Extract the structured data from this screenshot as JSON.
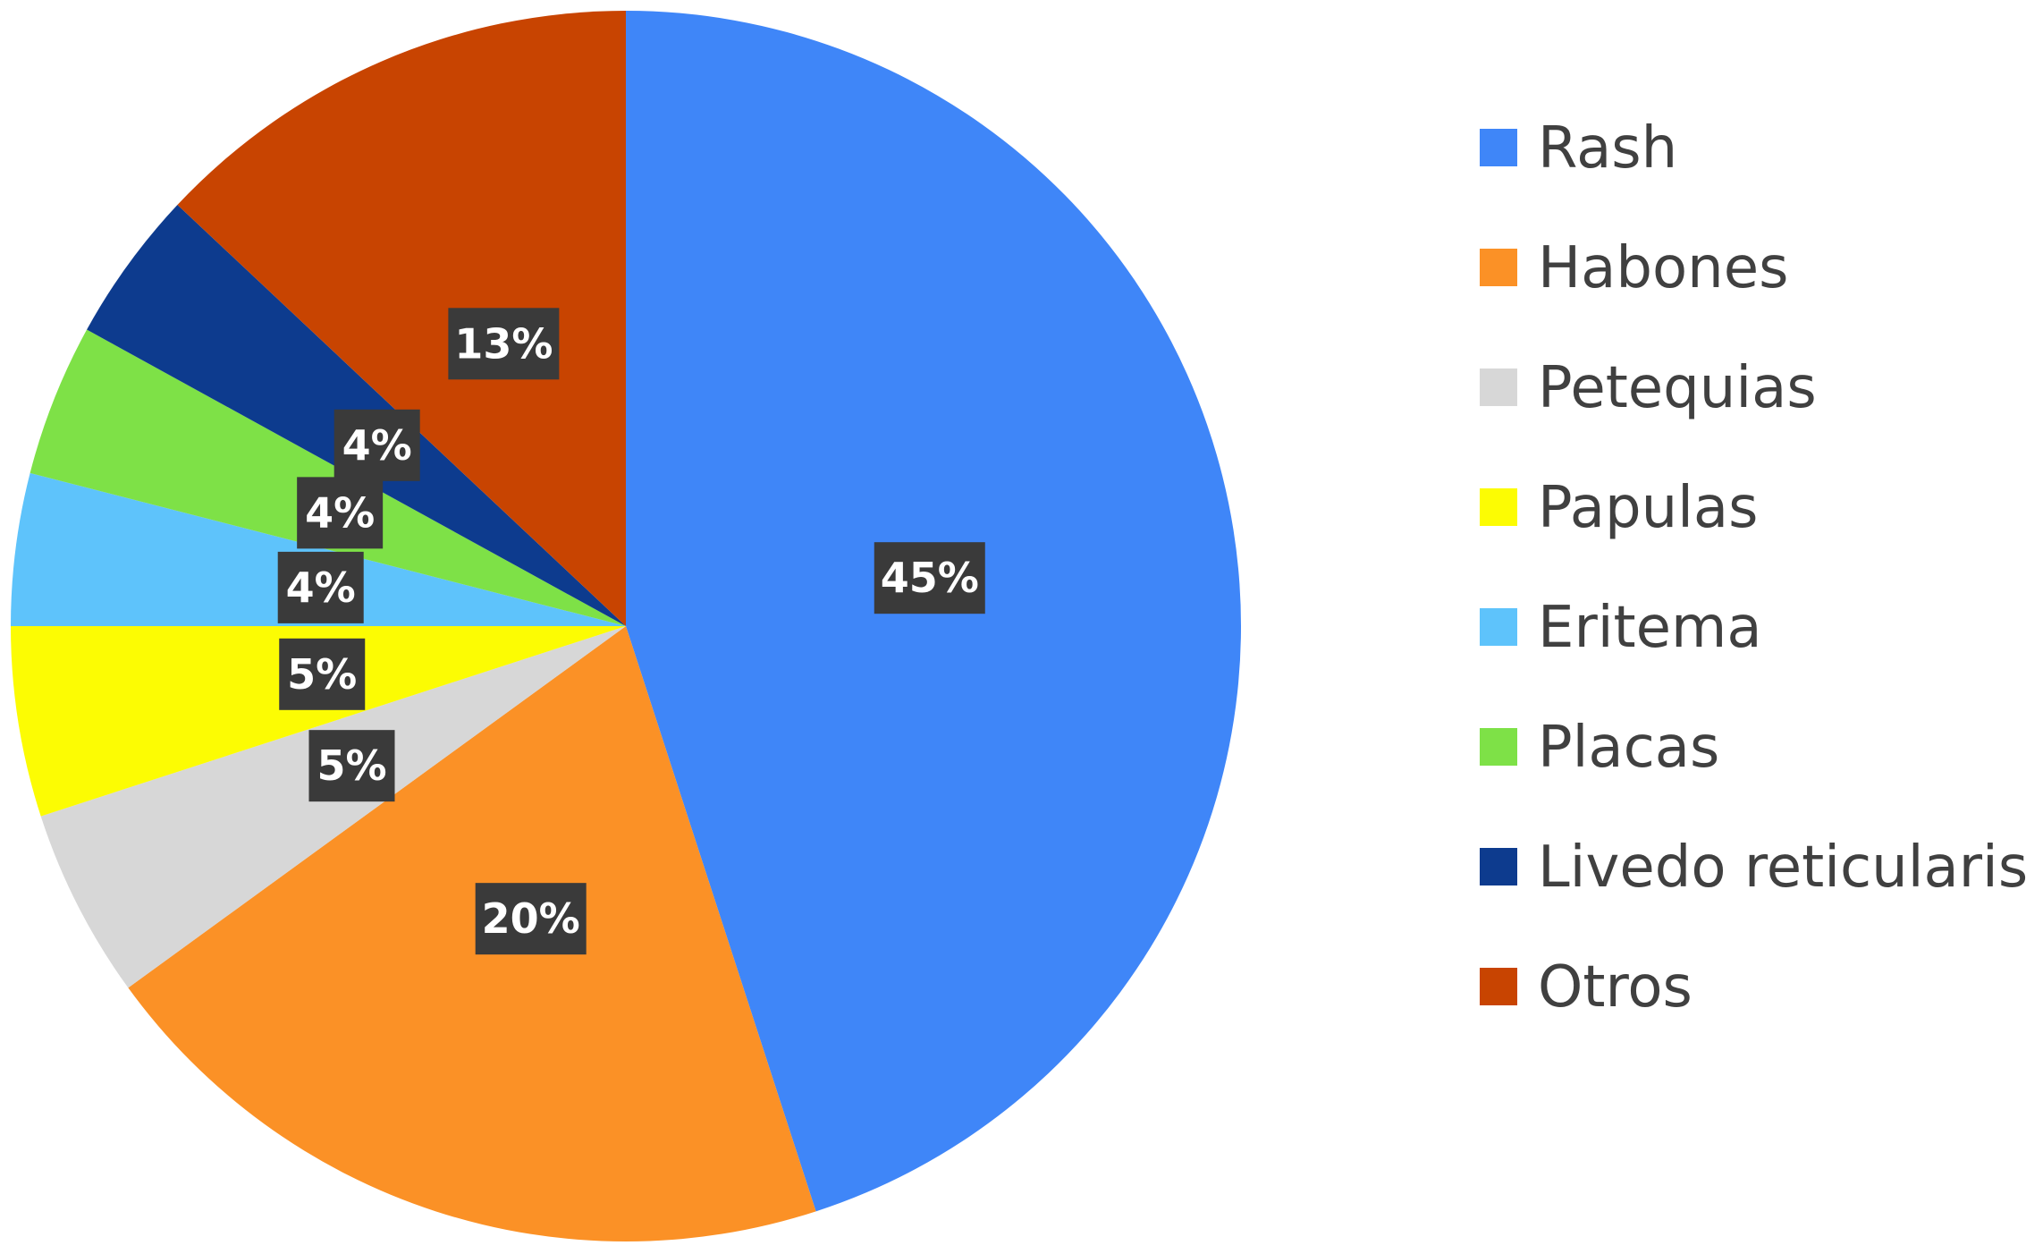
{
  "chart_data": {
    "type": "pie",
    "title": "",
    "legend_position": "right",
    "slices": [
      {
        "label": "Rash",
        "value": 45,
        "display": "45%",
        "color": "#3f86f8"
      },
      {
        "label": "Habones",
        "value": 20,
        "display": "20%",
        "color": "#fb9126"
      },
      {
        "label": "Petequias",
        "value": 5,
        "display": "5%",
        "color": "#d7d7d7"
      },
      {
        "label": "Papulas",
        "value": 5,
        "display": "5%",
        "color": "#fcfc03"
      },
      {
        "label": "Eritema",
        "value": 4,
        "display": "4%",
        "color": "#5ec3fb"
      },
      {
        "label": "Placas",
        "value": 4,
        "display": "4%",
        "color": "#7ee147"
      },
      {
        "label": "Livedo reticularis",
        "value": 4,
        "display": "4%",
        "color": "#0d3b8e"
      },
      {
        "label": "Otros",
        "value": 13,
        "display": "13%",
        "color": "#c84401"
      }
    ]
  }
}
